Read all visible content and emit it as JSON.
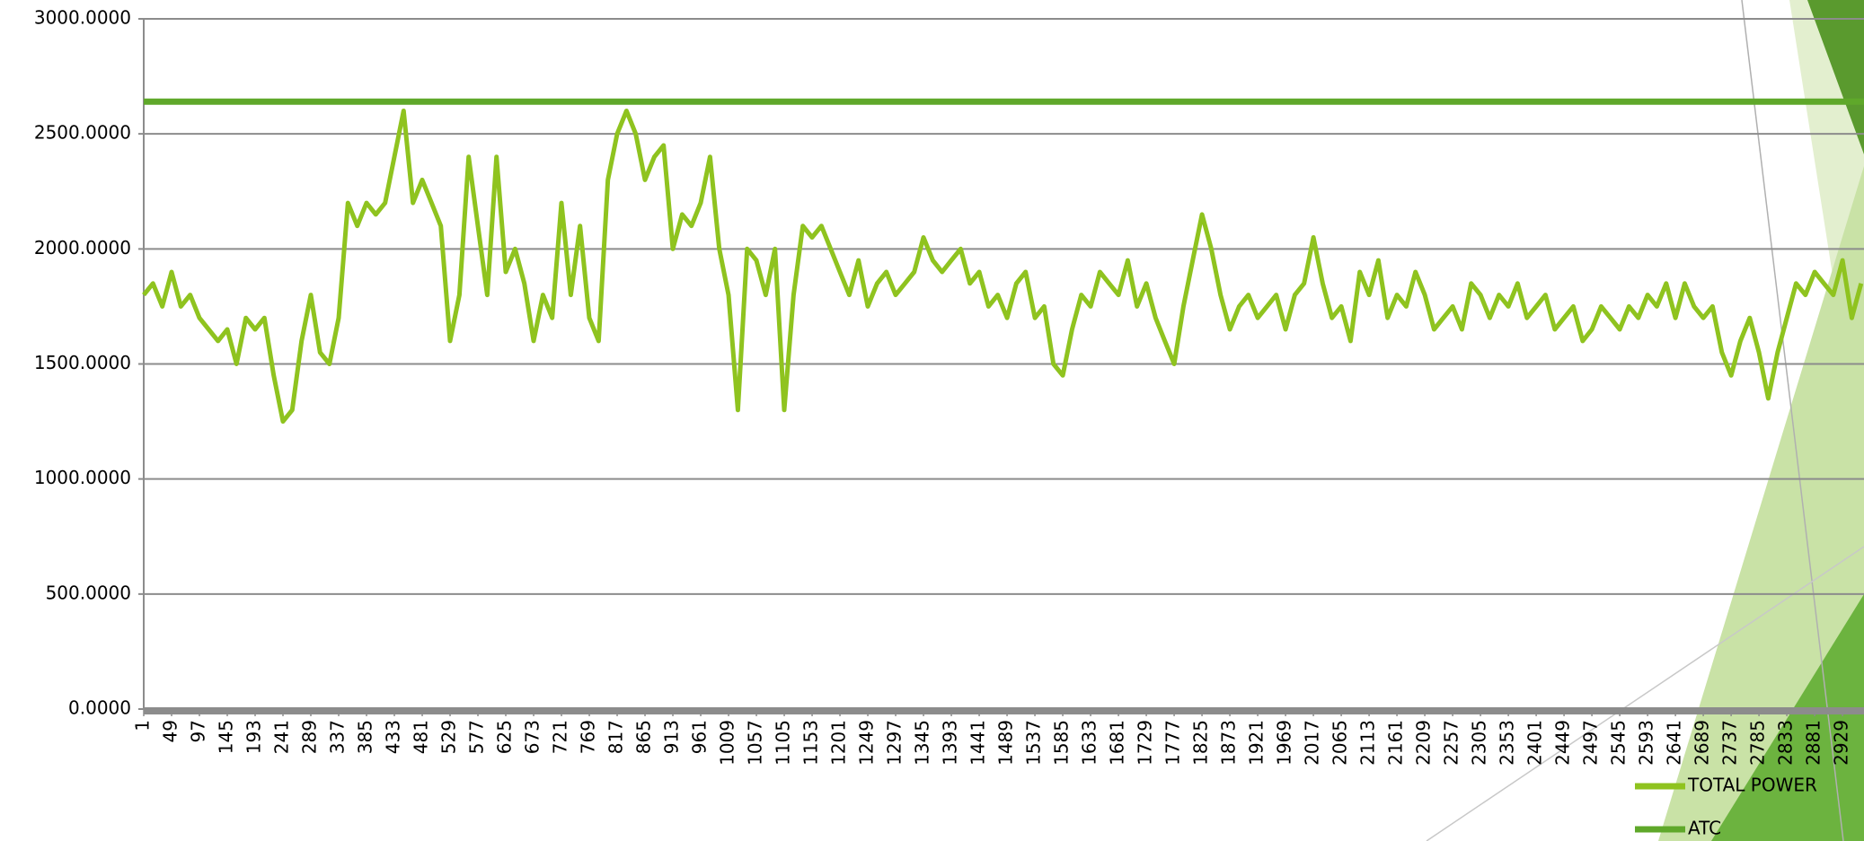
{
  "chart_data": {
    "type": "line",
    "xlim": [
      1,
      2966
    ],
    "xticks": [
      1,
      49,
      97,
      145,
      193,
      241,
      289,
      337,
      385,
      433,
      481,
      529,
      577,
      625,
      673,
      721,
      769,
      817,
      865,
      913,
      961,
      1009,
      1057,
      1105,
      1153,
      1201,
      1249,
      1297,
      1345,
      1393,
      1441,
      1489,
      1537,
      1585,
      1633,
      1681,
      1729,
      1777,
      1825,
      1873,
      1921,
      1969,
      2017,
      2065,
      2113,
      2161,
      2209,
      2257,
      2305,
      2353,
      2401,
      2449,
      2497,
      2545,
      2593,
      2641,
      2689,
      2737,
      2785,
      2833,
      2881,
      2929
    ],
    "ylim": [
      0,
      3000
    ],
    "yticks": [
      {
        "value": 0,
        "label": "0.0000"
      },
      {
        "value": 500,
        "label": "500.0000"
      },
      {
        "value": 1000,
        "label": "1000.0000"
      },
      {
        "value": 1500,
        "label": "1500.0000"
      },
      {
        "value": 2000,
        "label": "2000.0000"
      },
      {
        "value": 2500,
        "label": "2500.0000"
      },
      {
        "value": 3000,
        "label": "3000.0000"
      }
    ],
    "grid": true,
    "legend": "bottom-right",
    "series": [
      {
        "name": "TOTAL POWER",
        "color": "#8fc31f",
        "x": [
          1,
          17,
          33,
          49,
          65,
          81,
          97,
          113,
          129,
          145,
          161,
          177,
          193,
          209,
          225,
          241,
          257,
          273,
          289,
          305,
          321,
          337,
          353,
          369,
          385,
          401,
          417,
          433,
          449,
          465,
          481,
          497,
          513,
          529,
          545,
          561,
          577,
          593,
          609,
          625,
          641,
          657,
          673,
          689,
          705,
          721,
          737,
          753,
          769,
          785,
          801,
          817,
          833,
          849,
          865,
          881,
          897,
          913,
          929,
          945,
          961,
          977,
          993,
          1009,
          1025,
          1041,
          1057,
          1073,
          1089,
          1105,
          1121,
          1137,
          1153,
          1169,
          1185,
          1201,
          1217,
          1233,
          1249,
          1265,
          1281,
          1297,
          1313,
          1329,
          1345,
          1361,
          1377,
          1393,
          1409,
          1425,
          1441,
          1457,
          1473,
          1489,
          1505,
          1521,
          1537,
          1553,
          1569,
          1585,
          1601,
          1617,
          1633,
          1649,
          1665,
          1681,
          1697,
          1713,
          1729,
          1745,
          1761,
          1777,
          1793,
          1809,
          1825,
          1841,
          1857,
          1873,
          1889,
          1905,
          1921,
          1937,
          1953,
          1969,
          1985,
          2001,
          2017,
          2033,
          2049,
          2065,
          2081,
          2097,
          2113,
          2129,
          2145,
          2161,
          2177,
          2193,
          2209,
          2225,
          2241,
          2257,
          2273,
          2289,
          2305,
          2321,
          2337,
          2353,
          2369,
          2385,
          2401,
          2417,
          2433,
          2449,
          2465,
          2481,
          2497,
          2513,
          2529,
          2545,
          2561,
          2577,
          2593,
          2609,
          2625,
          2641,
          2657,
          2673,
          2689,
          2705,
          2721,
          2737,
          2753,
          2769,
          2785,
          2801,
          2817,
          2833,
          2849,
          2865,
          2881,
          2897,
          2913,
          2929,
          2945,
          2961
        ],
        "values": [
          1800,
          1850,
          1750,
          1900,
          1750,
          1800,
          1700,
          1650,
          1600,
          1650,
          1500,
          1700,
          1650,
          1700,
          1450,
          1250,
          1300,
          1600,
          1800,
          1550,
          1500,
          1700,
          2200,
          2100,
          2200,
          2150,
          2200,
          2400,
          2600,
          2200,
          2300,
          2200,
          2100,
          1600,
          1800,
          2400,
          2100,
          1800,
          2400,
          1900,
          2000,
          1850,
          1600,
          1800,
          1700,
          2200,
          1800,
          2100,
          1700,
          1600,
          2300,
          2500,
          2600,
          2500,
          2300,
          2400,
          2450,
          2000,
          2150,
          2100,
          2200,
          2400,
          2000,
          1800,
          1300,
          2000,
          1950,
          1800,
          2000,
          1300,
          1800,
          2100,
          2050,
          2100,
          2000,
          1900,
          1800,
          1950,
          1750,
          1850,
          1900,
          1800,
          1850,
          1900,
          2050,
          1950,
          1900,
          1950,
          2000,
          1850,
          1900,
          1750,
          1800,
          1700,
          1850,
          1900,
          1700,
          1750,
          1500,
          1450,
          1650,
          1800,
          1750,
          1900,
          1850,
          1800,
          1950,
          1750,
          1850,
          1700,
          1600,
          1500,
          1750,
          1950,
          2150,
          2000,
          1800,
          1650,
          1750,
          1800,
          1700,
          1750,
          1800,
          1650,
          1800,
          1850,
          2050,
          1850,
          1700,
          1750,
          1600,
          1900,
          1800,
          1950,
          1700,
          1800,
          1750,
          1900,
          1800,
          1650,
          1700,
          1750,
          1650,
          1850,
          1800,
          1700,
          1800,
          1750,
          1850,
          1700,
          1750,
          1800,
          1650,
          1700,
          1750,
          1600,
          1650,
          1750,
          1700,
          1650,
          1750,
          1700,
          1800,
          1750,
          1850,
          1700,
          1850,
          1750,
          1700,
          1750,
          1550,
          1450,
          1600,
          1700,
          1550,
          1350,
          1550,
          1700,
          1850,
          1800,
          1900,
          1850,
          1800,
          1950,
          1700,
          1850
        ]
      },
      {
        "name": "ATC",
        "color": "#5fa82a",
        "x": [
          1,
          2966
        ],
        "values": [
          2640,
          2640
        ]
      }
    ]
  }
}
